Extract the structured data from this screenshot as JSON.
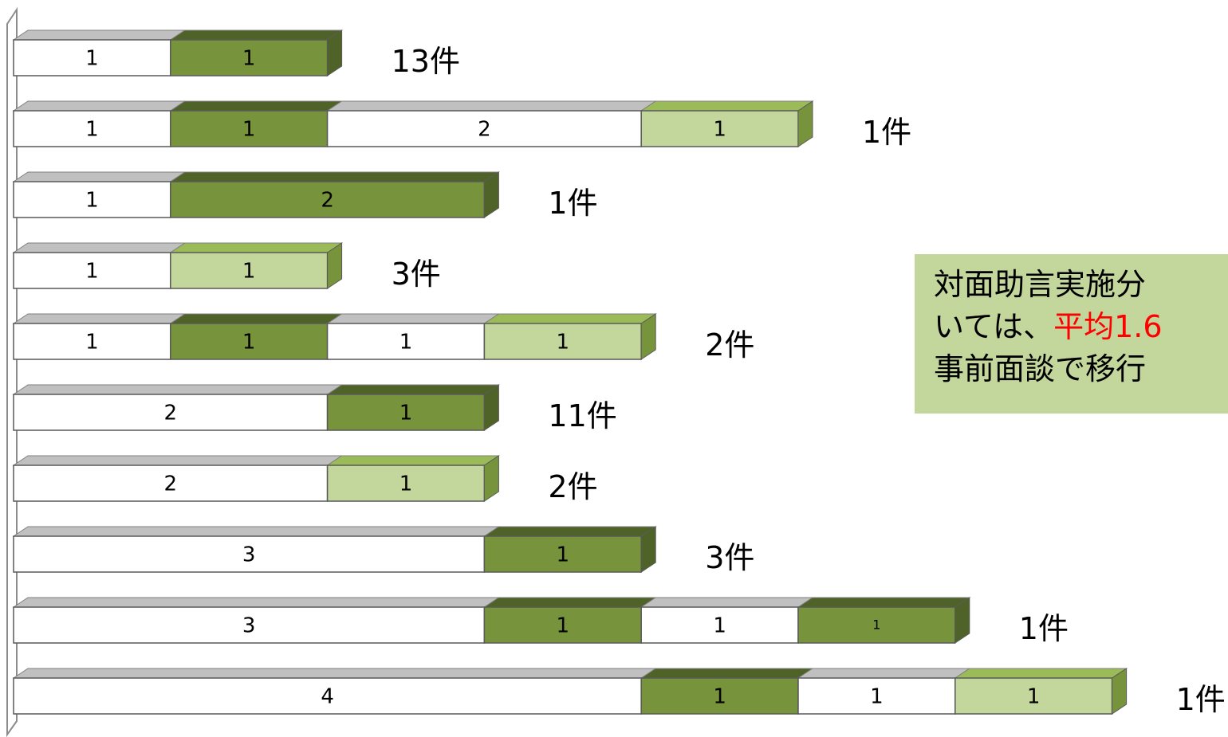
{
  "chart_data": {
    "type": "bar",
    "orientation": "horizontal",
    "stacked": true,
    "style": "3d",
    "legend": "none",
    "grid": false,
    "xlim": [
      0,
      7
    ],
    "segment_colors": {
      "white": "#ffffff",
      "dark-green": "#77933c",
      "light-green": "#c3d69b"
    },
    "rows": [
      {
        "segments": [
          {
            "value": 1,
            "color": "white"
          },
          {
            "value": 1,
            "color": "dark-green"
          }
        ],
        "count_label": "13件"
      },
      {
        "segments": [
          {
            "value": 1,
            "color": "white"
          },
          {
            "value": 1,
            "color": "dark-green"
          },
          {
            "value": 2,
            "color": "white"
          },
          {
            "value": 1,
            "color": "light-green"
          }
        ],
        "count_label": "1件"
      },
      {
        "segments": [
          {
            "value": 1,
            "color": "white"
          },
          {
            "value": 2,
            "color": "dark-green"
          }
        ],
        "count_label": "1件"
      },
      {
        "segments": [
          {
            "value": 1,
            "color": "white"
          },
          {
            "value": 1,
            "color": "light-green"
          }
        ],
        "count_label": "3件"
      },
      {
        "segments": [
          {
            "value": 1,
            "color": "white"
          },
          {
            "value": 1,
            "color": "dark-green"
          },
          {
            "value": 1,
            "color": "white"
          },
          {
            "value": 1,
            "color": "light-green"
          }
        ],
        "count_label": "2件"
      },
      {
        "segments": [
          {
            "value": 2,
            "color": "white"
          },
          {
            "value": 1,
            "color": "dark-green"
          }
        ],
        "count_label": "11件"
      },
      {
        "segments": [
          {
            "value": 2,
            "color": "white"
          },
          {
            "value": 1,
            "color": "light-green"
          }
        ],
        "count_label": "2件"
      },
      {
        "segments": [
          {
            "value": 3,
            "color": "white"
          },
          {
            "value": 1,
            "color": "dark-green"
          }
        ],
        "count_label": "3件"
      },
      {
        "segments": [
          {
            "value": 3,
            "color": "white"
          },
          {
            "value": 1,
            "color": "dark-green"
          },
          {
            "value": 1,
            "color": "white"
          },
          {
            "value": 1,
            "color": "dark-green"
          }
        ],
        "count_label": "1件"
      },
      {
        "segments": [
          {
            "value": 4,
            "color": "white"
          },
          {
            "value": 1,
            "color": "dark-green"
          },
          {
            "value": 1,
            "color": "white"
          },
          {
            "value": 1,
            "color": "light-green"
          }
        ],
        "count_label": "1件"
      }
    ]
  },
  "annotation": {
    "line1": "対面助言実施分",
    "line2_prefix": "いては、",
    "line2_highlight": "平均1.6",
    "line3": "事前面談で移行",
    "bg_color": "#c3d69b",
    "highlight_color": "#ff0000"
  }
}
